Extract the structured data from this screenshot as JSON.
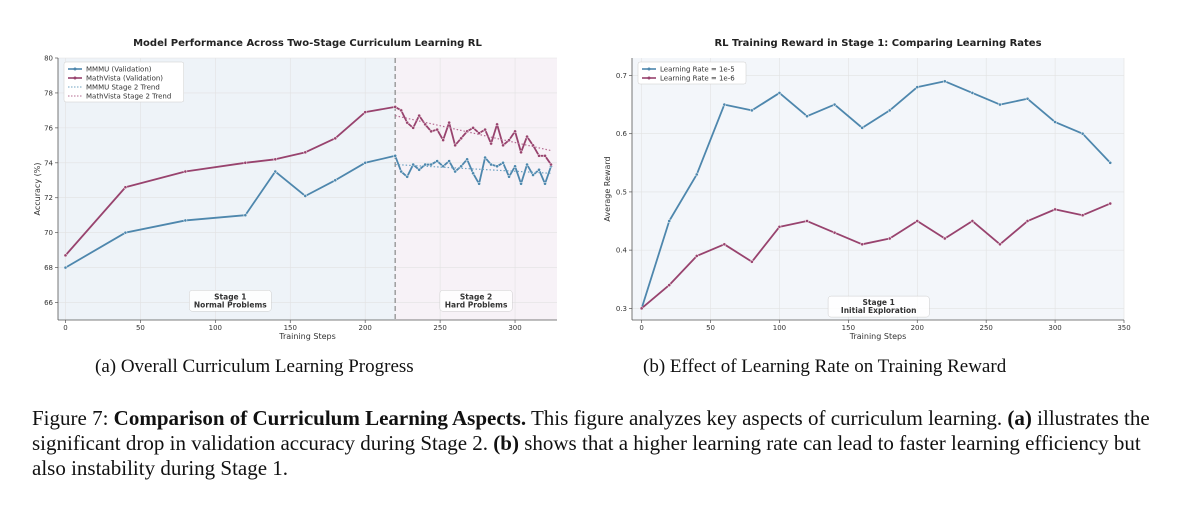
{
  "chart_data": [
    {
      "type": "line",
      "title": "Model Performance Across Two-Stage Curriculum Learning RL",
      "xlabel": "Training Steps",
      "ylabel": "Accuracy (%)",
      "xlim": [
        -5,
        328
      ],
      "ylim": [
        65,
        80
      ],
      "xticks": [
        0,
        50,
        100,
        150,
        200,
        250,
        300
      ],
      "yticks": [
        66,
        68,
        70,
        72,
        74,
        76,
        78,
        80
      ],
      "grid": true,
      "legend": "top-left",
      "stage_divider_x": 220,
      "regions": [
        {
          "from": -5,
          "to": 220,
          "color": "#eef3f8",
          "label": "Stage 1",
          "sublabel": "Normal Problems",
          "label_x": 110,
          "label_y": 65.5
        },
        {
          "from": 220,
          "to": 328,
          "color": "#f7f2f7",
          "label": "Stage 2",
          "sublabel": "Hard Problems",
          "label_x": 274,
          "label_y": 65.5
        }
      ],
      "series": [
        {
          "name": "MMMU (Validation)",
          "color": "#4e87ad",
          "style": "solid",
          "x": [
            0,
            40,
            80,
            120,
            140,
            160,
            180,
            200,
            220,
            224,
            228,
            232,
            236,
            240,
            244,
            248,
            252,
            256,
            260,
            264,
            268,
            272,
            276,
            280,
            284,
            288,
            292,
            296,
            300,
            304,
            308,
            312,
            316,
            320,
            324
          ],
          "y": [
            68.0,
            70.0,
            70.7,
            71.0,
            73.5,
            72.1,
            73.0,
            74.0,
            74.4,
            73.5,
            73.2,
            73.9,
            73.6,
            73.9,
            73.9,
            74.1,
            73.8,
            74.1,
            73.5,
            73.8,
            74.2,
            73.4,
            72.8,
            74.3,
            73.9,
            73.8,
            74.0,
            73.2,
            73.8,
            72.8,
            73.9,
            73.3,
            73.6,
            72.8,
            73.8
          ]
        },
        {
          "name": "MathVista (Validation)",
          "color": "#98436e",
          "style": "solid",
          "x": [
            0,
            40,
            80,
            120,
            140,
            160,
            180,
            200,
            220,
            224,
            228,
            232,
            236,
            240,
            244,
            248,
            252,
            256,
            260,
            264,
            268,
            272,
            276,
            280,
            284,
            288,
            292,
            296,
            300,
            304,
            308,
            312,
            316,
            320,
            324
          ],
          "y": [
            68.7,
            72.6,
            73.5,
            74.0,
            74.2,
            74.6,
            75.4,
            76.9,
            77.2,
            77.0,
            76.3,
            76.0,
            76.7,
            76.2,
            75.8,
            75.9,
            75.3,
            76.3,
            75.0,
            75.4,
            75.8,
            76.0,
            75.7,
            75.9,
            75.1,
            76.2,
            75.0,
            75.3,
            75.8,
            74.6,
            75.5,
            75.0,
            74.4,
            74.4,
            73.9
          ]
        },
        {
          "name": "MMMU Stage 2 Trend",
          "color": "#6fa3c2",
          "style": "dotted",
          "x": [
            220,
            324
          ],
          "y": [
            73.9,
            73.4
          ]
        },
        {
          "name": "MathVista Stage 2 Trend",
          "color": "#b56b92",
          "style": "dotted",
          "x": [
            220,
            324
          ],
          "y": [
            76.7,
            74.7
          ]
        }
      ]
    },
    {
      "type": "line",
      "title": "RL Training Reward in Stage 1: Comparing Learning Rates",
      "xlabel": "Training Steps",
      "ylabel": "Average Reward",
      "xlim": [
        -7,
        350
      ],
      "ylim": [
        0.28,
        0.73
      ],
      "xticks": [
        0,
        50,
        100,
        150,
        200,
        250,
        300,
        350
      ],
      "yticks": [
        0.3,
        0.4,
        0.5,
        0.6,
        0.7
      ],
      "grid": true,
      "legend": "top-left",
      "annotation": {
        "label": "Stage 1",
        "sublabel": "Initial Exploration",
        "x": 172,
        "y": 0.285
      },
      "series": [
        {
          "name": "Learning Rate = 1e-5",
          "color": "#4e87ad",
          "style": "solid",
          "x": [
            0,
            20,
            40,
            60,
            80,
            100,
            120,
            140,
            160,
            180,
            200,
            220,
            240,
            260,
            280,
            300,
            320,
            340
          ],
          "y": [
            0.3,
            0.45,
            0.53,
            0.65,
            0.64,
            0.67,
            0.63,
            0.65,
            0.61,
            0.64,
            0.68,
            0.69,
            0.67,
            0.65,
            0.66,
            0.62,
            0.6,
            0.55
          ]
        },
        {
          "name": "Learning Rate = 1e-6",
          "color": "#98436e",
          "style": "solid",
          "x": [
            0,
            20,
            40,
            60,
            80,
            100,
            120,
            140,
            160,
            180,
            200,
            220,
            240,
            260,
            280,
            300,
            320,
            340
          ],
          "y": [
            0.3,
            0.34,
            0.39,
            0.41,
            0.38,
            0.44,
            0.45,
            0.43,
            0.41,
            0.42,
            0.45,
            0.42,
            0.45,
            0.41,
            0.45,
            0.47,
            0.46,
            0.48
          ]
        }
      ]
    }
  ],
  "captions": {
    "sub_a": "(a) Overall Curriculum Learning Progress",
    "sub_b": "(b) Effect of Learning Rate on Training Reward"
  },
  "figure_caption": {
    "label": "Figure 7:",
    "bold_title": "Comparison of Curriculum Learning Aspects.",
    "text_1": "This figure analyzes key aspects of curriculum learning.",
    "bold_a": "(a)",
    "text_2": "illustrates the significant drop in validation accuracy during Stage 2.",
    "bold_b": "(b)",
    "text_3": "shows that a higher learning rate can lead to faster learning efficiency but also instability during Stage 1."
  }
}
